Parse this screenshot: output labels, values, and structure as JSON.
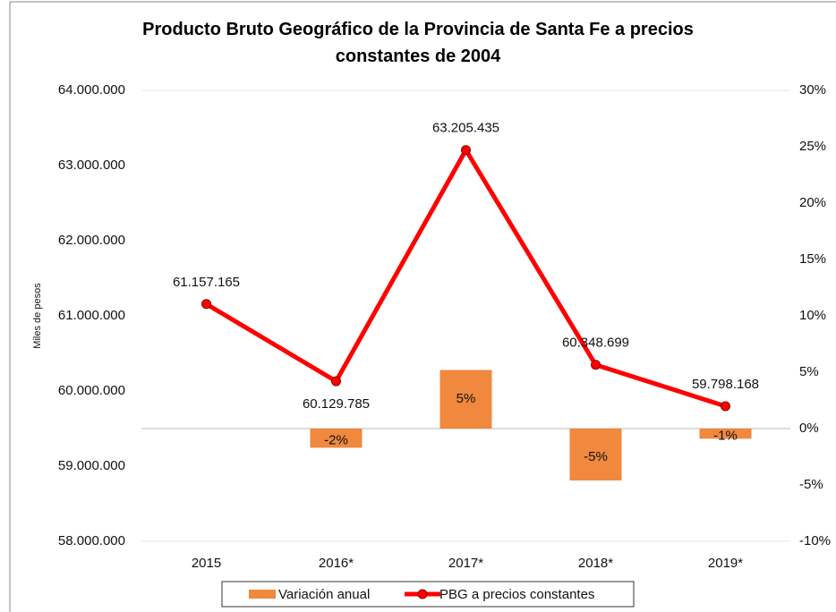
{
  "chart_data": {
    "type": "combo",
    "title": "Producto Bruto Geográfico de la Provincia de Santa Fe a precios constantes de 2004",
    "y_label": "Miles de pesos",
    "categories": [
      "2015",
      "2016*",
      "2017*",
      "2018*",
      "2019*"
    ],
    "series": [
      {
        "name": "Variación anual",
        "type": "bar",
        "axis": "y2",
        "color": "#f0883e",
        "values": [
          null,
          -1.7,
          5.2,
          -4.6,
          -0.9
        ],
        "value_labels": [
          null,
          "-2%",
          "5%",
          "-5%",
          "-1%"
        ]
      },
      {
        "name": "PBG a precios constantes",
        "type": "line",
        "axis": "y",
        "color": "#ff0000",
        "values": [
          61157165,
          60129785,
          63205435,
          60348699,
          59798168
        ],
        "value_labels": [
          "61.157.165",
          "60.129.785",
          "63.205.435",
          "60.348.699",
          "59.798.168"
        ]
      }
    ],
    "ylim": [
      58000000,
      64000000
    ],
    "yticks": [
      {
        "value": 58000000,
        "label": "58.000.000"
      },
      {
        "value": 59000000,
        "label": "59.000.000"
      },
      {
        "value": 60000000,
        "label": "60.000.000"
      },
      {
        "value": 61000000,
        "label": "61.000.000"
      },
      {
        "value": 62000000,
        "label": "62.000.000"
      },
      {
        "value": 63000000,
        "label": "63.000.000"
      },
      {
        "value": 64000000,
        "label": "64.000.000"
      }
    ],
    "y2lim": [
      -10,
      30
    ],
    "y2ticks": [
      {
        "value": -10,
        "label": "-10%"
      },
      {
        "value": -5,
        "label": "-5%"
      },
      {
        "value": 0,
        "label": "0%"
      },
      {
        "value": 5,
        "label": "5%"
      },
      {
        "value": 10,
        "label": "10%"
      },
      {
        "value": 15,
        "label": "15%"
      },
      {
        "value": 20,
        "label": "20%"
      },
      {
        "value": 25,
        "label": "25%"
      },
      {
        "value": 30,
        "label": "30%"
      }
    ],
    "legend": "bottom"
  }
}
